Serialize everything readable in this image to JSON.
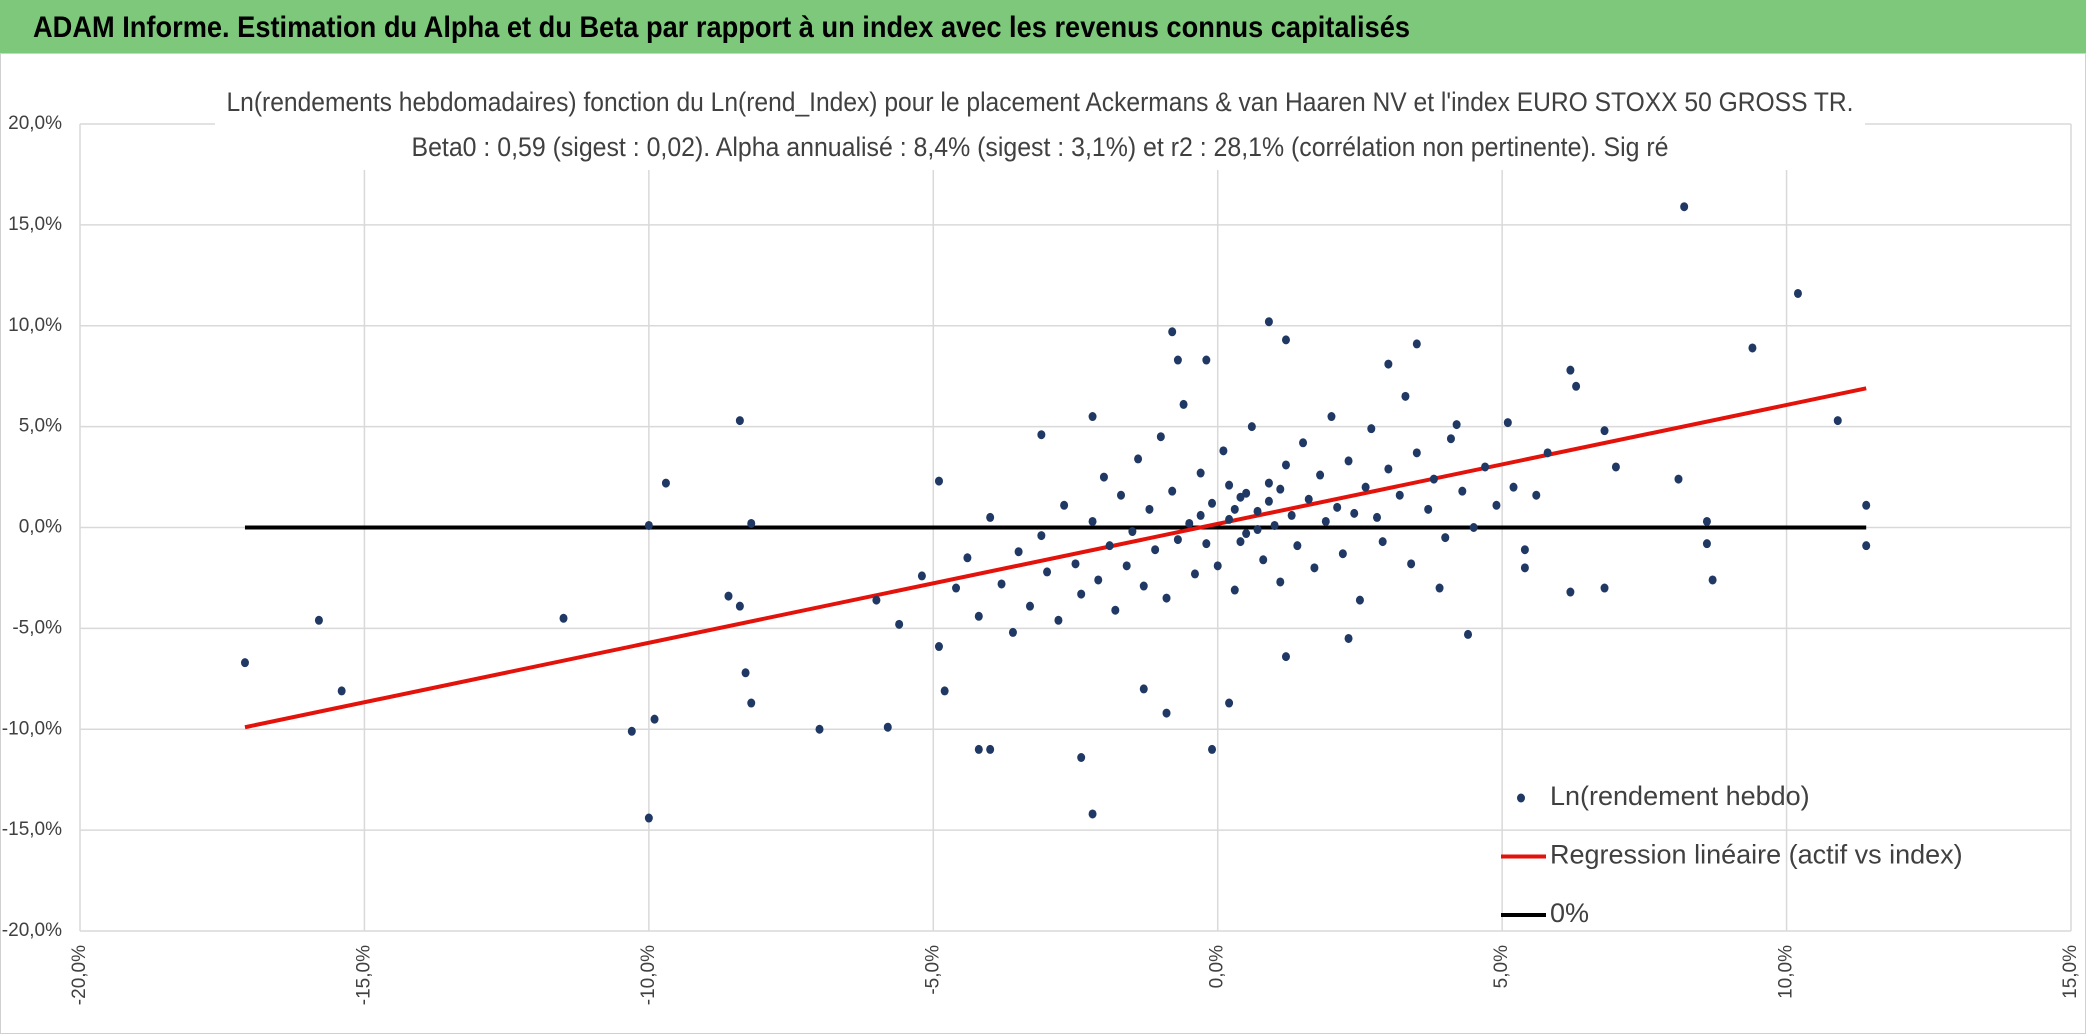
{
  "header": {
    "title": "ADAM Informe. Estimation du Alpha et du Beta par rapport à un index avec les revenus connus capitalisés"
  },
  "chart_data": {
    "type": "scatter",
    "title": "Ln(rendements hebdomadaires) fonction du Ln(rend_Index) pour le placement Ackermans & van Haaren NV et l'index EURO STOXX 50 GROSS TR.",
    "subtitle": "Beta0 : 0,59 (sigest : 0,02). Alpha annualisé : 8,4% (sigest : 3,1%) et r2 : 28,1% (corrélation non pertinente). Sig ré",
    "xlim": [
      -20,
      15
    ],
    "ylim": [
      -20,
      20
    ],
    "xticks": [
      {
        "value": -20,
        "label": "-20,0%"
      },
      {
        "value": -15,
        "label": "-15,0%"
      },
      {
        "value": -10,
        "label": "-10,0%"
      },
      {
        "value": -5,
        "label": "-5,0%"
      },
      {
        "value": 0,
        "label": "0,0%"
      },
      {
        "value": 5,
        "label": "5,0%"
      },
      {
        "value": 10,
        "label": "10,0%"
      },
      {
        "value": 15,
        "label": "15,0%"
      }
    ],
    "yticks": [
      {
        "value": -20,
        "label": "-20,0%"
      },
      {
        "value": -15,
        "label": "-15,0%"
      },
      {
        "value": -10,
        "label": "-10,0%"
      },
      {
        "value": -5,
        "label": "-5,0%"
      },
      {
        "value": 0,
        "label": "0,0%"
      },
      {
        "value": 5,
        "label": "5,0%"
      },
      {
        "value": 10,
        "label": "10,0%"
      },
      {
        "value": 15,
        "label": "15,0%"
      },
      {
        "value": 20,
        "label": "20,0%"
      }
    ],
    "grid": true,
    "legend": "lower right",
    "series": [
      {
        "name": "Ln(rendement hebdo)",
        "mode": "markers",
        "color": "#203864",
        "x": [
          -17.1,
          -15.8,
          -15.4,
          -11.5,
          -10.3,
          -10.0,
          -10.0,
          -9.9,
          -9.7,
          -8.6,
          -8.4,
          -8.4,
          -8.3,
          -8.2,
          -8.2,
          -7.0,
          -5.8,
          -4.9,
          -4.8,
          -4.2,
          -4.0,
          -3.1,
          -2.4,
          -2.2,
          -2.2,
          -1.3,
          -0.9,
          -0.8,
          -0.7,
          -0.2,
          -0.1,
          0.2,
          0.9,
          1.2,
          3.5,
          3.0,
          5.4,
          5.4,
          6.2,
          6.2,
          6.8,
          7.0,
          8.1,
          8.2,
          8.6,
          8.6,
          8.7,
          9.4,
          10.2,
          10.9,
          11.4,
          11.4,
          4.4,
          3.9,
          1.2,
          2.3,
          5.1,
          6.8,
          6.3,
          4.2,
          -6.0,
          -5.6,
          -5.2,
          -4.9,
          -4.6,
          -4.4,
          -4.2,
          -4.0,
          -3.8,
          -3.6,
          -3.5,
          -3.3,
          -3.1,
          -3.0,
          -2.8,
          -2.7,
          -2.5,
          -2.4,
          -2.2,
          -2.1,
          -2.0,
          -1.9,
          -1.8,
          -1.7,
          -1.6,
          -1.5,
          -1.4,
          -1.3,
          -1.2,
          -1.1,
          -1.0,
          -0.9,
          -0.8,
          -0.7,
          -0.6,
          -0.5,
          -0.4,
          -0.3,
          -0.2,
          -0.1,
          0.0,
          0.1,
          0.2,
          0.3,
          0.4,
          0.5,
          0.6,
          0.7,
          0.8,
          0.9,
          1.0,
          1.1,
          1.2,
          1.3,
          1.4,
          1.5,
          1.6,
          1.7,
          1.8,
          1.9,
          2.0,
          2.1,
          2.2,
          2.3,
          2.4,
          2.5,
          2.6,
          2.7,
          2.8,
          2.9,
          3.0,
          3.2,
          3.3,
          3.4,
          3.5,
          3.7,
          3.8,
          4.0,
          4.1,
          4.3,
          4.5,
          4.7,
          4.9,
          5.2,
          5.6,
          5.8,
          0.3,
          0.5,
          0.7,
          0.2,
          -0.3,
          0.9,
          1.1,
          0.4
        ],
        "values": [
          -6.7,
          -4.6,
          -8.1,
          -4.5,
          -10.1,
          -14.4,
          0.1,
          -9.5,
          2.2,
          -3.4,
          5.3,
          -3.9,
          -7.2,
          0.2,
          -8.7,
          -10.0,
          -9.9,
          2.3,
          -8.1,
          -11.0,
          -11.0,
          4.6,
          -11.4,
          5.5,
          -14.2,
          -8.0,
          -9.2,
          9.7,
          8.3,
          8.3,
          -11.0,
          -8.7,
          10.2,
          9.3,
          9.1,
          8.1,
          -1.1,
          -2.0,
          -3.2,
          7.8,
          -3.0,
          3.0,
          2.4,
          15.9,
          0.3,
          -0.8,
          -2.6,
          8.9,
          11.6,
          5.3,
          1.1,
          -0.9,
          -5.3,
          -3.0,
          -6.4,
          -5.5,
          5.2,
          4.8,
          7.0,
          5.1,
          -3.6,
          -4.8,
          -2.4,
          -5.9,
          -3.0,
          -1.5,
          -4.4,
          0.5,
          -2.8,
          -5.2,
          -1.2,
          -3.9,
          -0.4,
          -2.2,
          -4.6,
          1.1,
          -1.8,
          -3.3,
          0.3,
          -2.6,
          2.5,
          -0.9,
          -4.1,
          1.6,
          -1.9,
          -0.2,
          3.4,
          -2.9,
          0.9,
          -1.1,
          4.5,
          -3.5,
          1.8,
          -0.6,
          6.1,
          0.2,
          -2.3,
          2.7,
          -0.8,
          1.2,
          -1.9,
          3.8,
          0.4,
          -3.1,
          1.5,
          -0.3,
          5.0,
          0.8,
          -1.6,
          2.2,
          0.1,
          -2.7,
          3.1,
          0.6,
          -0.9,
          4.2,
          1.4,
          -2.0,
          2.6,
          0.3,
          5.5,
          1.0,
          -1.3,
          3.3,
          0.7,
          -3.6,
          2.0,
          4.9,
          0.5,
          -0.7,
          2.9,
          1.6,
          6.5,
          -1.8,
          3.7,
          0.9,
          2.4,
          -0.5,
          4.4,
          1.8,
          0.0,
          3.0,
          1.1,
          2.0,
          1.6,
          3.7,
          0.9,
          1.7,
          -0.1,
          2.1,
          0.6,
          1.3,
          1.9,
          -0.7
        ]
      },
      {
        "name": "Regression linéaire (actif vs index)",
        "mode": "line",
        "color": "#e3120b",
        "x": [
          -17.1,
          11.4
        ],
        "values": [
          -9.9,
          6.9
        ]
      },
      {
        "name": "0%",
        "mode": "line",
        "color": "#000000",
        "x": [
          -17.1,
          11.4
        ],
        "values": [
          0,
          0
        ]
      }
    ]
  }
}
